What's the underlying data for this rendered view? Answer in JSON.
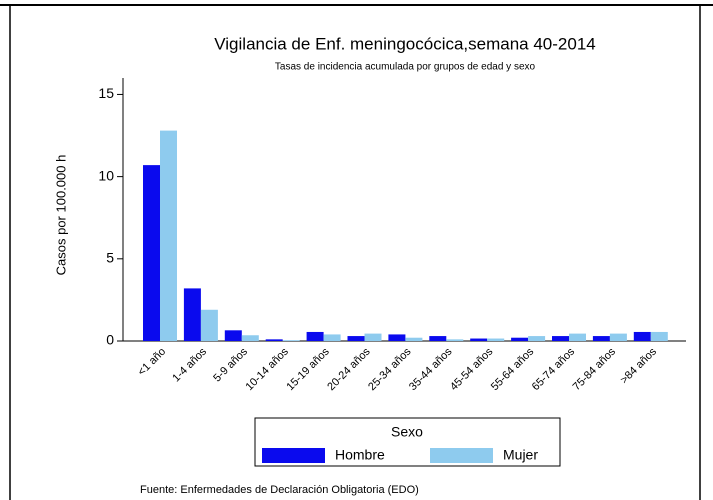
{
  "chart_data": {
    "type": "bar",
    "title": "Vigilancia de Enf. meningocócica,semana 40-2014",
    "subtitle": "Tasas de incidencia acumulada por grupos de edad y sexo",
    "y_label": "Casos por 100.000 h",
    "categories": [
      "<1 año",
      "1-4 años",
      "5-9 años",
      "10-14 años",
      "15-19 años",
      "20-24 años",
      "25-34 años",
      "35-44 años",
      "45-54 años",
      "55-64 años",
      "65-74 años",
      "75-84 años",
      ">84 años"
    ],
    "series": [
      {
        "name": "Hombre",
        "color": "#0a0aee",
        "values": [
          10.7,
          3.2,
          0.65,
          0.1,
          0.55,
          0.3,
          0.4,
          0.3,
          0.15,
          0.2,
          0.3,
          0.3,
          0.55
        ]
      },
      {
        "name": "Mujer",
        "color": "#8ecbee",
        "values": [
          12.8,
          1.9,
          0.35,
          0.05,
          0.4,
          0.45,
          0.2,
          0.1,
          0.15,
          0.3,
          0.45,
          0.45,
          0.55
        ]
      }
    ],
    "ylim": [
      0,
      16
    ],
    "yticks": [
      0,
      5,
      10,
      15
    ],
    "legend_title": "Sexo",
    "source": "Fuente: Enfermedades de Declaración Obligatoria (EDO)"
  }
}
